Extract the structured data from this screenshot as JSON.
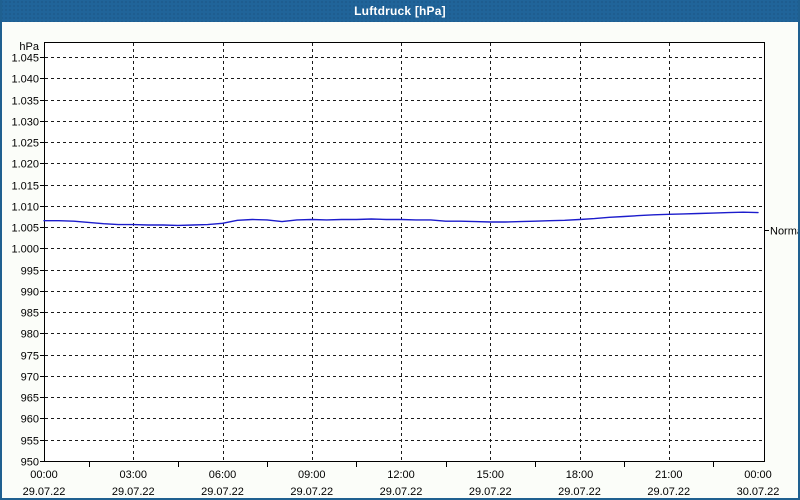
{
  "window": {
    "title": "Luftdruck [hPa]"
  },
  "colors": {
    "titlebar_bg": "#20649a",
    "window_border": "#1f6090",
    "page_bg": "#fbfdf9",
    "plot_bg": "#ffffff",
    "grid": "#1a1a1a",
    "axis": "#000000",
    "line": "#1c1ccc",
    "text": "#000000",
    "title_text": "#ffffff"
  },
  "chart_data": {
    "type": "line",
    "title": "Luftdruck [hPa]",
    "unit_label": "hPa",
    "ylabel": "hPa",
    "ylim": [
      950,
      1045
    ],
    "y_tick_step": 5,
    "grid": "dashed",
    "legend_position": "none",
    "y_ticks": [
      {
        "value": 1045,
        "label": "1.045"
      },
      {
        "value": 1040,
        "label": "1.040"
      },
      {
        "value": 1035,
        "label": "1.035"
      },
      {
        "value": 1030,
        "label": "1.030"
      },
      {
        "value": 1025,
        "label": "1.025"
      },
      {
        "value": 1020,
        "label": "1.020"
      },
      {
        "value": 1015,
        "label": "1.015"
      },
      {
        "value": 1010,
        "label": "1.010"
      },
      {
        "value": 1005,
        "label": "1.005"
      },
      {
        "value": 1000,
        "label": "1.000"
      },
      {
        "value": 995,
        "label": "995"
      },
      {
        "value": 990,
        "label": "990"
      },
      {
        "value": 985,
        "label": "985"
      },
      {
        "value": 980,
        "label": "980"
      },
      {
        "value": 975,
        "label": "975"
      },
      {
        "value": 970,
        "label": "970"
      },
      {
        "value": 965,
        "label": "965"
      },
      {
        "value": 960,
        "label": "960"
      },
      {
        "value": 955,
        "label": "955"
      },
      {
        "value": 950,
        "label": "950"
      }
    ],
    "x_ticks": [
      {
        "hour": 0,
        "time": "00:00",
        "date": "29.07.22"
      },
      {
        "hour": 3,
        "time": "03:00",
        "date": "29.07.22"
      },
      {
        "hour": 6,
        "time": "06:00",
        "date": "29.07.22"
      },
      {
        "hour": 9,
        "time": "09:00",
        "date": "29.07.22"
      },
      {
        "hour": 12,
        "time": "12:00",
        "date": "29.07.22"
      },
      {
        "hour": 15,
        "time": "15:00",
        "date": "29.07.22"
      },
      {
        "hour": 18,
        "time": "18:00",
        "date": "29.07.22"
      },
      {
        "hour": 21,
        "time": "21:00",
        "date": "29.07.22"
      },
      {
        "hour": 24,
        "time": "00:00",
        "date": "30.07.22"
      }
    ],
    "x_minor_tick_hours": [
      1.5,
      4.5,
      7.5,
      10.5,
      13.5,
      16.5,
      19.5,
      22.5
    ],
    "annotation": {
      "label": "Normal",
      "value": 1004.4
    },
    "series": [
      {
        "name": "Luftdruck",
        "color": "#1c1ccc",
        "x_hours": [
          0,
          0.5,
          1,
          1.5,
          2,
          2.5,
          3,
          3.5,
          4,
          4.5,
          5,
          5.5,
          6,
          6.5,
          7,
          7.5,
          8,
          8.5,
          9,
          9.5,
          10,
          10.5,
          11,
          11.5,
          12,
          12.5,
          13,
          13.5,
          14,
          14.5,
          15,
          15.5,
          16,
          16.5,
          17,
          17.5,
          18,
          18.5,
          19,
          19.5,
          20,
          20.5,
          21,
          21.5,
          22,
          22.5,
          23,
          23.5,
          24
        ],
        "values": [
          1006.5,
          1006.5,
          1006.4,
          1006.1,
          1005.8,
          1005.6,
          1005.6,
          1005.5,
          1005.5,
          1005.4,
          1005.5,
          1005.6,
          1005.9,
          1006.6,
          1006.8,
          1006.7,
          1006.3,
          1006.7,
          1006.8,
          1006.7,
          1006.8,
          1006.8,
          1006.9,
          1006.8,
          1006.8,
          1006.7,
          1006.7,
          1006.4,
          1006.4,
          1006.3,
          1006.2,
          1006.2,
          1006.3,
          1006.4,
          1006.5,
          1006.6,
          1006.8,
          1007.0,
          1007.3,
          1007.5,
          1007.7,
          1007.9,
          1008.0,
          1008.1,
          1008.2,
          1008.3,
          1008.4,
          1008.5,
          1008.4
        ]
      }
    ]
  }
}
